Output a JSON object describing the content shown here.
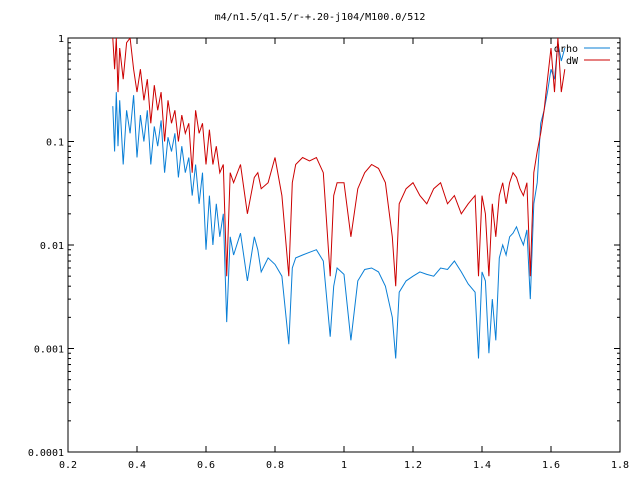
{
  "chart_data": {
    "type": "line",
    "title": "m4/n1.5/q1.5/r-+.20-j104/M100.0/512",
    "xlabel": "",
    "ylabel": "",
    "xlim": [
      0.2,
      1.8
    ],
    "ylim": [
      0.0001,
      1
    ],
    "yscale": "log",
    "xticks": [
      "0.2",
      "0.4",
      "0.6",
      "0.8",
      "1",
      "1.2",
      "1.4",
      "1.6",
      "1.8"
    ],
    "yticks": [
      "0.0001",
      "0.001",
      "0.01",
      "0.1",
      "1"
    ],
    "grid": false,
    "legend_position": "top-right",
    "series": [
      {
        "name": "drho",
        "color": "#0a7fd6",
        "x": [
          0.33,
          0.335,
          0.34,
          0.345,
          0.35,
          0.36,
          0.37,
          0.38,
          0.39,
          0.4,
          0.41,
          0.42,
          0.43,
          0.44,
          0.45,
          0.46,
          0.47,
          0.48,
          0.49,
          0.5,
          0.51,
          0.52,
          0.53,
          0.54,
          0.55,
          0.56,
          0.57,
          0.58,
          0.59,
          0.6,
          0.61,
          0.62,
          0.63,
          0.64,
          0.65,
          0.66,
          0.67,
          0.68,
          0.7,
          0.72,
          0.74,
          0.75,
          0.76,
          0.78,
          0.8,
          0.82,
          0.84,
          0.85,
          0.86,
          0.88,
          0.9,
          0.92,
          0.94,
          0.96,
          0.97,
          0.98,
          1.0,
          1.02,
          1.04,
          1.06,
          1.08,
          1.1,
          1.12,
          1.14,
          1.15,
          1.16,
          1.18,
          1.2,
          1.22,
          1.24,
          1.26,
          1.28,
          1.3,
          1.32,
          1.34,
          1.36,
          1.38,
          1.39,
          1.4,
          1.41,
          1.42,
          1.43,
          1.44,
          1.45,
          1.46,
          1.47,
          1.48,
          1.49,
          1.5,
          1.51,
          1.52,
          1.53,
          1.54,
          1.55,
          1.56,
          1.57,
          1.58,
          1.59,
          1.6,
          1.61,
          1.62,
          1.63,
          1.64
        ],
        "y": [
          0.22,
          0.08,
          0.3,
          0.09,
          0.25,
          0.06,
          0.2,
          0.12,
          0.28,
          0.07,
          0.18,
          0.1,
          0.2,
          0.06,
          0.14,
          0.09,
          0.16,
          0.05,
          0.11,
          0.08,
          0.12,
          0.045,
          0.09,
          0.05,
          0.07,
          0.03,
          0.06,
          0.025,
          0.05,
          0.009,
          0.03,
          0.01,
          0.025,
          0.012,
          0.02,
          0.0018,
          0.012,
          0.008,
          0.013,
          0.0045,
          0.012,
          0.009,
          0.0055,
          0.0075,
          0.0065,
          0.005,
          0.0011,
          0.006,
          0.0075,
          0.008,
          0.0085,
          0.009,
          0.007,
          0.0013,
          0.004,
          0.006,
          0.0052,
          0.0012,
          0.0045,
          0.0058,
          0.006,
          0.0055,
          0.004,
          0.002,
          0.0008,
          0.0035,
          0.0045,
          0.005,
          0.0055,
          0.0052,
          0.005,
          0.006,
          0.0058,
          0.007,
          0.0055,
          0.0042,
          0.0035,
          0.0008,
          0.0055,
          0.0045,
          0.0009,
          0.003,
          0.0012,
          0.0075,
          0.01,
          0.008,
          0.012,
          0.013,
          0.015,
          0.012,
          0.01,
          0.014,
          0.003,
          0.025,
          0.04,
          0.15,
          0.2,
          0.3,
          0.5,
          0.4,
          0.9,
          0.6,
          0.8
        ]
      },
      {
        "name": "dW",
        "color": "#cc0000",
        "x": [
          0.33,
          0.335,
          0.34,
          0.345,
          0.35,
          0.36,
          0.37,
          0.38,
          0.39,
          0.4,
          0.41,
          0.42,
          0.43,
          0.44,
          0.45,
          0.46,
          0.47,
          0.48,
          0.49,
          0.5,
          0.51,
          0.52,
          0.53,
          0.54,
          0.55,
          0.56,
          0.57,
          0.58,
          0.59,
          0.6,
          0.61,
          0.62,
          0.63,
          0.64,
          0.65,
          0.66,
          0.67,
          0.68,
          0.7,
          0.72,
          0.74,
          0.75,
          0.76,
          0.78,
          0.8,
          0.82,
          0.84,
          0.85,
          0.86,
          0.88,
          0.9,
          0.92,
          0.94,
          0.96,
          0.97,
          0.98,
          1.0,
          1.02,
          1.04,
          1.06,
          1.08,
          1.1,
          1.12,
          1.14,
          1.15,
          1.16,
          1.18,
          1.2,
          1.22,
          1.24,
          1.26,
          1.28,
          1.3,
          1.32,
          1.34,
          1.36,
          1.38,
          1.39,
          1.4,
          1.41,
          1.42,
          1.43,
          1.44,
          1.45,
          1.46,
          1.47,
          1.48,
          1.49,
          1.5,
          1.51,
          1.52,
          1.53,
          1.54,
          1.55,
          1.56,
          1.57,
          1.58,
          1.59,
          1.6,
          1.61,
          1.62,
          1.63,
          1.64
        ],
        "y": [
          1.0,
          0.5,
          1.0,
          0.3,
          0.8,
          0.4,
          0.9,
          1.0,
          0.5,
          0.3,
          0.5,
          0.25,
          0.4,
          0.15,
          0.35,
          0.2,
          0.3,
          0.1,
          0.25,
          0.15,
          0.2,
          0.1,
          0.18,
          0.12,
          0.15,
          0.05,
          0.2,
          0.12,
          0.15,
          0.06,
          0.13,
          0.06,
          0.09,
          0.05,
          0.06,
          0.005,
          0.05,
          0.04,
          0.06,
          0.02,
          0.045,
          0.05,
          0.035,
          0.04,
          0.07,
          0.03,
          0.005,
          0.04,
          0.06,
          0.07,
          0.065,
          0.07,
          0.05,
          0.005,
          0.03,
          0.04,
          0.04,
          0.012,
          0.035,
          0.05,
          0.06,
          0.055,
          0.04,
          0.012,
          0.004,
          0.025,
          0.035,
          0.04,
          0.03,
          0.025,
          0.035,
          0.04,
          0.025,
          0.03,
          0.02,
          0.025,
          0.03,
          0.005,
          0.03,
          0.02,
          0.005,
          0.025,
          0.012,
          0.03,
          0.04,
          0.025,
          0.04,
          0.05,
          0.045,
          0.035,
          0.03,
          0.04,
          0.005,
          0.05,
          0.08,
          0.12,
          0.2,
          0.4,
          0.8,
          0.3,
          1.0,
          0.3,
          0.5
        ]
      }
    ]
  }
}
